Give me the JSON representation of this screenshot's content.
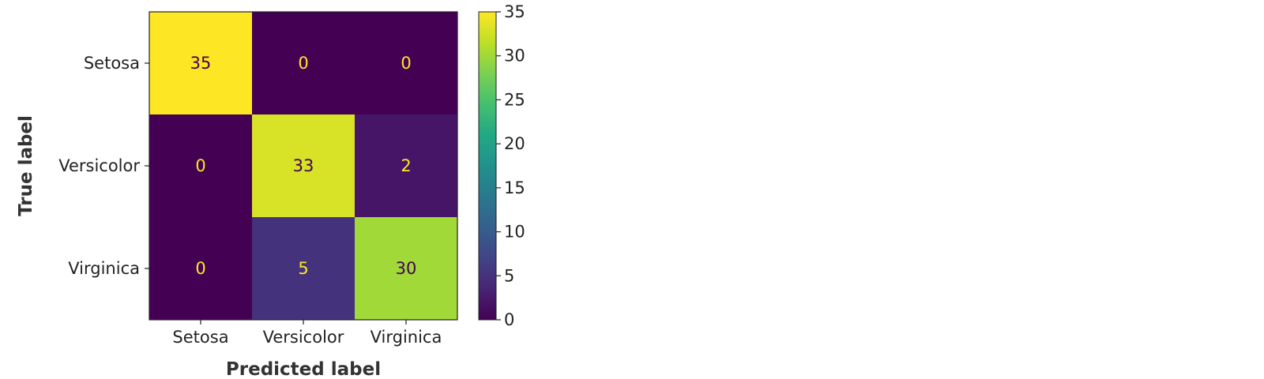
{
  "chart_data": {
    "type": "heatmap",
    "title": "",
    "xlabel": "Predicted label",
    "ylabel": "True label",
    "x_categories": [
      "Setosa",
      "Versicolor",
      "Virginica"
    ],
    "y_categories": [
      "Setosa",
      "Versicolor",
      "Virginica"
    ],
    "matrix": [
      [
        35,
        0,
        0
      ],
      [
        0,
        33,
        2
      ],
      [
        0,
        5,
        30
      ]
    ],
    "colormap": "viridis",
    "colorbar": {
      "range": [
        0,
        35
      ],
      "ticks": [
        "0",
        "5",
        "10",
        "15",
        "20",
        "25",
        "30",
        "35"
      ]
    },
    "cell_text_colors": {
      "on_dark": "#fde725",
      "on_light": "#440154"
    },
    "grid": false,
    "legend": "colorbar-right"
  }
}
